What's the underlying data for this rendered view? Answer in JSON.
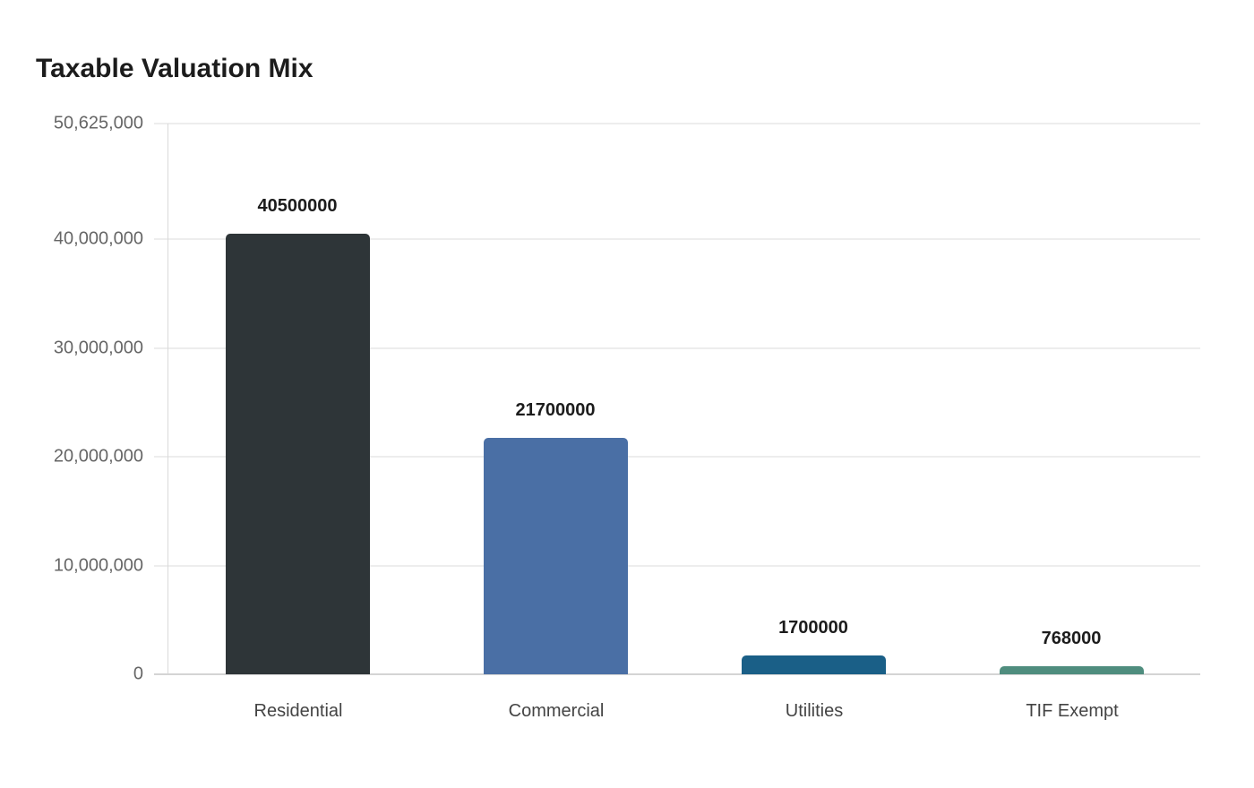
{
  "chart_data": {
    "type": "bar",
    "title": "Taxable Valuation Mix",
    "xlabel": "",
    "ylabel": "",
    "categories": [
      "Residential",
      "Commercial",
      "Utilities",
      "TIF Exempt"
    ],
    "values": [
      40500000,
      21700000,
      1700000,
      768000
    ],
    "value_labels": [
      "40500000",
      "21700000",
      "1700000",
      "768000"
    ],
    "colors": [
      "#2e3538",
      "#4a6fa5",
      "#1a5f87",
      "#4f8d7e"
    ],
    "ylim": [
      0,
      50625000
    ],
    "yticks": [
      0,
      10000000,
      20000000,
      30000000,
      40000000,
      50625000
    ],
    "ytick_labels": [
      "0",
      "10,000,000",
      "20,000,000",
      "30,000,000",
      "40,000,000",
      "50,625,000"
    ],
    "grid": true,
    "legend": "none"
  }
}
